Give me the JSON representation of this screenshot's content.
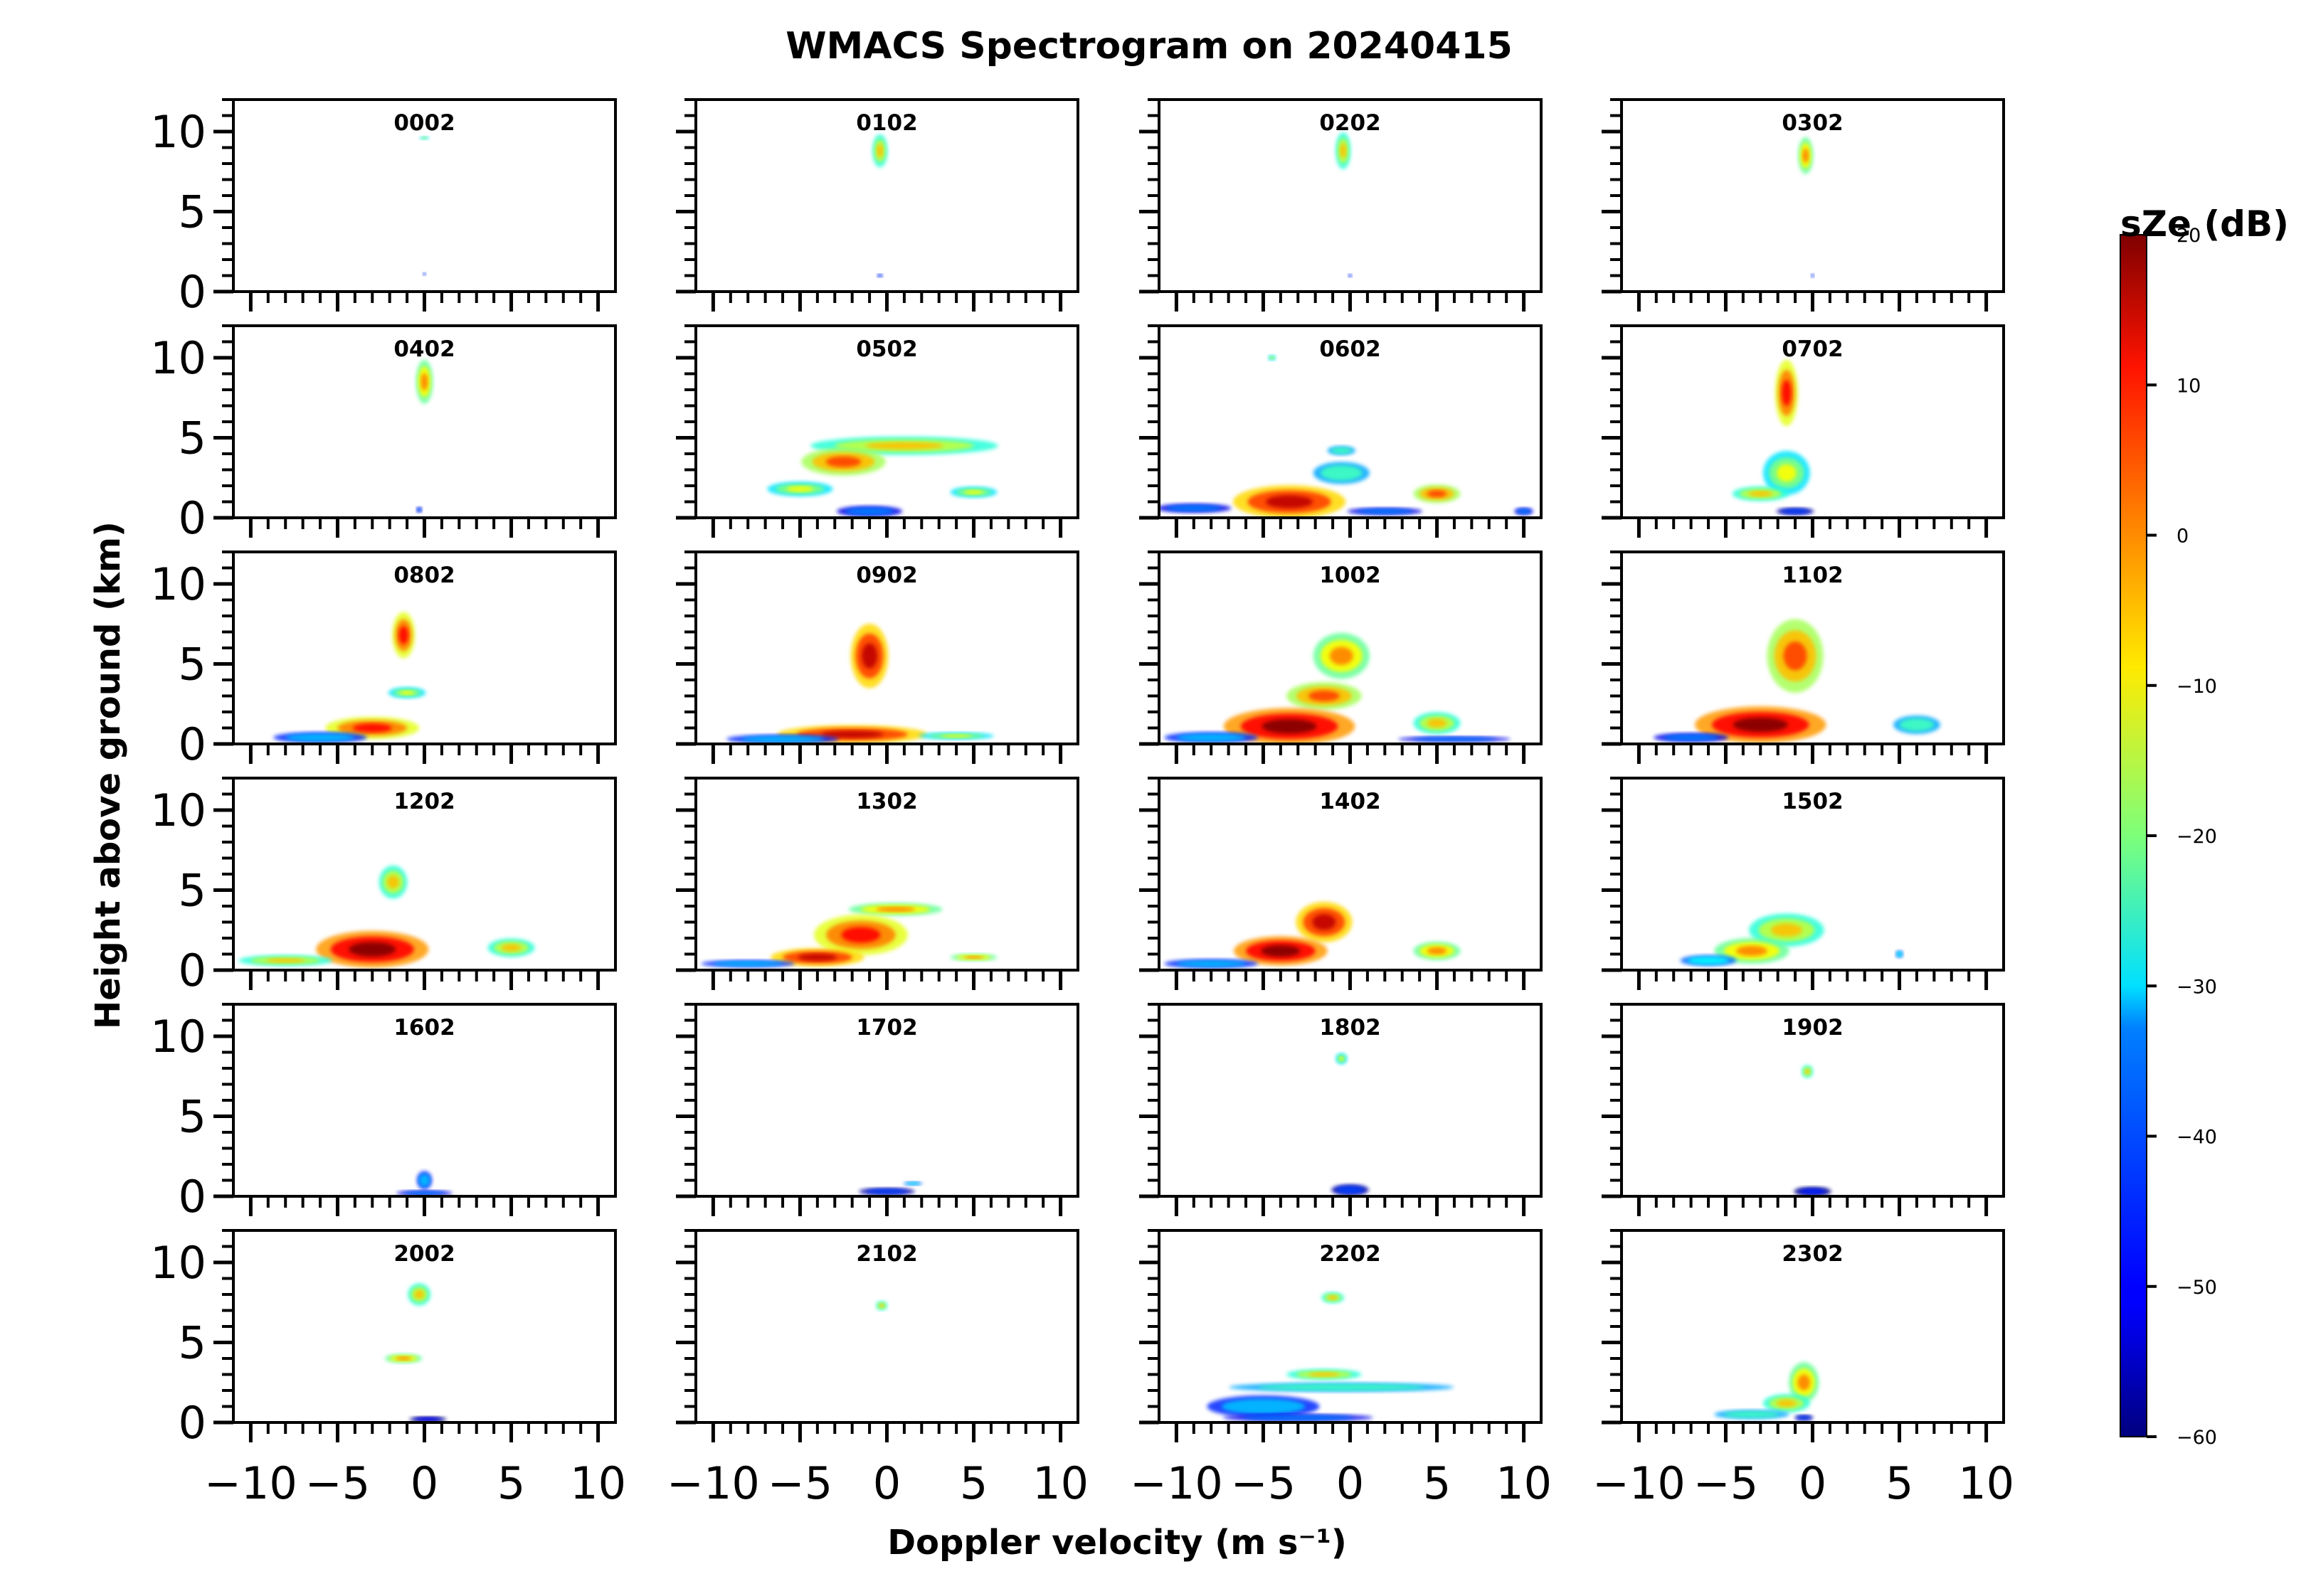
{
  "chart_data": {
    "type": "heatmap",
    "title": "WMACS Spectrogram on 20240415",
    "xlabel": "Doppler velocity (m s⁻¹)",
    "ylabel": "Height above ground (km)",
    "xlim": [
      -11,
      11
    ],
    "ylim": [
      0,
      12
    ],
    "x_ticks": [
      -10,
      -5,
      0,
      5,
      10
    ],
    "x_tick_labels": [
      "−10",
      "−5",
      "0",
      "5",
      "10"
    ],
    "y_ticks": [
      0,
      5,
      10
    ],
    "y_tick_labels": [
      "0",
      "5",
      "10"
    ],
    "grid": false,
    "layout": {
      "rows": 6,
      "cols": 4
    },
    "colorbar": {
      "label": "sZe (dB)",
      "range": [
        -60,
        20
      ],
      "ticks": [
        -60,
        -50,
        -40,
        -30,
        -20,
        -10,
        0,
        10,
        20
      ],
      "tick_labels": [
        "−60",
        "−50",
        "−40",
        "−30",
        "−20",
        "−10",
        "0",
        "10",
        "20"
      ],
      "colormap": "jet"
    },
    "panels": [
      {
        "label": "0002",
        "blobs": [
          {
            "x": 0,
            "y": 9.6,
            "w": 0.5,
            "h": 0.15,
            "v": -20
          },
          {
            "x": 0,
            "y": 1.1,
            "w": 0.15,
            "h": 0.1,
            "v": -40
          }
        ]
      },
      {
        "label": "0102",
        "blobs": [
          {
            "x": -0.4,
            "y": 8.8,
            "w": 0.8,
            "h": 1.8,
            "v": -15
          },
          {
            "x": -0.4,
            "y": 1.0,
            "w": 0.3,
            "h": 0.1,
            "v": -40
          }
        ]
      },
      {
        "label": "0202",
        "blobs": [
          {
            "x": -0.4,
            "y": 8.8,
            "w": 0.8,
            "h": 2.0,
            "v": -15
          },
          {
            "x": 0,
            "y": 1.0,
            "w": 0.2,
            "h": 0.1,
            "v": -40
          }
        ]
      },
      {
        "label": "0302",
        "blobs": [
          {
            "x": -0.4,
            "y": 8.5,
            "w": 0.8,
            "h": 2.0,
            "v": -10
          },
          {
            "x": 0,
            "y": 1.0,
            "w": 0.1,
            "h": 0.2,
            "v": -40
          }
        ]
      },
      {
        "label": "0402",
        "blobs": [
          {
            "x": 0,
            "y": 8.5,
            "w": 0.9,
            "h": 2.4,
            "v": -10
          },
          {
            "x": -0.3,
            "y": 0.5,
            "w": 0.3,
            "h": 0.3,
            "v": -40
          }
        ]
      },
      {
        "label": "0502",
        "blobs": [
          {
            "x": 1.0,
            "y": 4.5,
            "w": 10,
            "h": 1.0,
            "v": -15
          },
          {
            "x": -2.5,
            "y": 3.5,
            "w": 4.5,
            "h": 1.5,
            "v": -5
          },
          {
            "x": -5,
            "y": 1.8,
            "w": 3.5,
            "h": 0.8,
            "v": -20
          },
          {
            "x": 5,
            "y": 1.6,
            "w": 2.5,
            "h": 0.6,
            "v": -20
          },
          {
            "x": -1,
            "y": 0.4,
            "w": 3.5,
            "h": 0.6,
            "v": -40
          }
        ]
      },
      {
        "label": "0602",
        "blobs": [
          {
            "x": -9,
            "y": 0.6,
            "w": 4,
            "h": 0.5,
            "v": -40
          },
          {
            "x": -3.5,
            "y": 1.0,
            "w": 6,
            "h": 1.8,
            "v": 5
          },
          {
            "x": -0.5,
            "y": 2.8,
            "w": 3,
            "h": 1.2,
            "v": -25
          },
          {
            "x": -0.5,
            "y": 4.2,
            "w": 1.5,
            "h": 0.5,
            "v": -25
          },
          {
            "x": 5,
            "y": 1.5,
            "w": 2.5,
            "h": 1.0,
            "v": -5
          },
          {
            "x": 2,
            "y": 0.4,
            "w": 4,
            "h": 0.4,
            "v": -40
          },
          {
            "x": 10,
            "y": 0.4,
            "w": 1,
            "h": 0.4,
            "v": -40
          },
          {
            "x": -4.5,
            "y": 10.0,
            "w": 0.4,
            "h": 0.3,
            "v": -20
          }
        ]
      },
      {
        "label": "0702",
        "blobs": [
          {
            "x": -1.5,
            "y": 7.8,
            "w": 1.2,
            "h": 3.6,
            "v": 0
          },
          {
            "x": -1.5,
            "y": 2.8,
            "w": 2.5,
            "h": 2.4,
            "v": -20
          },
          {
            "x": -3,
            "y": 1.5,
            "w": 3,
            "h": 0.8,
            "v": -15
          },
          {
            "x": -1,
            "y": 0.4,
            "w": 2,
            "h": 0.4,
            "v": -45
          }
        ]
      },
      {
        "label": "0802",
        "blobs": [
          {
            "x": -1.2,
            "y": 6.8,
            "w": 1.2,
            "h": 2.5,
            "v": 0
          },
          {
            "x": -1,
            "y": 3.2,
            "w": 2,
            "h": 0.6,
            "v": -20
          },
          {
            "x": -3,
            "y": 1.0,
            "w": 5,
            "h": 1.2,
            "v": 0
          },
          {
            "x": -6,
            "y": 0.4,
            "w": 5,
            "h": 0.6,
            "v": -35
          }
        ]
      },
      {
        "label": "0902",
        "blobs": [
          {
            "x": -1.0,
            "y": 5.5,
            "w": 2.0,
            "h": 3.5,
            "v": 5
          },
          {
            "x": -2,
            "y": 0.6,
            "w": 8,
            "h": 1.0,
            "v": 5
          },
          {
            "x": -6,
            "y": 0.3,
            "w": 6,
            "h": 0.5,
            "v": -35
          },
          {
            "x": 4,
            "y": 0.5,
            "w": 4,
            "h": 0.4,
            "v": -20
          }
        ]
      },
      {
        "label": "1002",
        "blobs": [
          {
            "x": -0.5,
            "y": 5.5,
            "w": 3,
            "h": 2.5,
            "v": -10
          },
          {
            "x": -1.5,
            "y": 3.0,
            "w": 4,
            "h": 1.5,
            "v": -5
          },
          {
            "x": -3.5,
            "y": 1.1,
            "w": 7,
            "h": 2.0,
            "v": 10
          },
          {
            "x": 5,
            "y": 1.3,
            "w": 2.5,
            "h": 1.2,
            "v": -15
          },
          {
            "x": -8,
            "y": 0.4,
            "w": 5,
            "h": 0.6,
            "v": -35
          },
          {
            "x": 6,
            "y": 0.3,
            "w": 6,
            "h": 0.3,
            "v": -40
          }
        ]
      },
      {
        "label": "1102",
        "blobs": [
          {
            "x": -1.0,
            "y": 5.5,
            "w": 3,
            "h": 4.0,
            "v": -5
          },
          {
            "x": -3.0,
            "y": 1.2,
            "w": 7,
            "h": 2.0,
            "v": 10
          },
          {
            "x": -7,
            "y": 0.4,
            "w": 4,
            "h": 0.5,
            "v": -40
          },
          {
            "x": 6,
            "y": 1.2,
            "w": 2.5,
            "h": 1.0,
            "v": -25
          }
        ]
      },
      {
        "label": "1202",
        "blobs": [
          {
            "x": -1.8,
            "y": 5.5,
            "w": 1.5,
            "h": 1.8,
            "v": -15
          },
          {
            "x": -3.0,
            "y": 1.3,
            "w": 6,
            "h": 2.0,
            "v": 10
          },
          {
            "x": -8,
            "y": 0.6,
            "w": 5,
            "h": 0.6,
            "v": -15
          },
          {
            "x": 5,
            "y": 1.4,
            "w": 2.5,
            "h": 1.0,
            "v": -15
          }
        ]
      },
      {
        "label": "1302",
        "blobs": [
          {
            "x": 0.5,
            "y": 3.8,
            "w": 5,
            "h": 0.7,
            "v": -10
          },
          {
            "x": -1.5,
            "y": 2.2,
            "w": 5,
            "h": 2.2,
            "v": 0
          },
          {
            "x": -4,
            "y": 0.8,
            "w": 5,
            "h": 1.0,
            "v": 5
          },
          {
            "x": -8,
            "y": 0.4,
            "w": 5,
            "h": 0.4,
            "v": -35
          },
          {
            "x": 5,
            "y": 0.8,
            "w": 2.5,
            "h": 0.4,
            "v": -10
          }
        ]
      },
      {
        "label": "1402",
        "blobs": [
          {
            "x": -1.5,
            "y": 3.0,
            "w": 3,
            "h": 2.2,
            "v": 5
          },
          {
            "x": -4,
            "y": 1.2,
            "w": 5,
            "h": 1.6,
            "v": 10
          },
          {
            "x": -8,
            "y": 0.4,
            "w": 5,
            "h": 0.5,
            "v": -35
          },
          {
            "x": 5,
            "y": 1.2,
            "w": 2.5,
            "h": 1.0,
            "v": -10
          }
        ]
      },
      {
        "label": "1502",
        "blobs": [
          {
            "x": -1.5,
            "y": 2.5,
            "w": 4,
            "h": 1.8,
            "v": -15
          },
          {
            "x": -3.5,
            "y": 1.2,
            "w": 4,
            "h": 1.4,
            "v": -10
          },
          {
            "x": -6,
            "y": 0.6,
            "w": 3,
            "h": 0.6,
            "v": -30
          },
          {
            "x": 5,
            "y": 1.0,
            "w": 0.4,
            "h": 0.4,
            "v": -30
          }
        ]
      },
      {
        "label": "1602",
        "blobs": [
          {
            "x": 0,
            "y": 1.0,
            "w": 0.8,
            "h": 1.0,
            "v": -35
          },
          {
            "x": 0,
            "y": 0.2,
            "w": 3,
            "h": 0.3,
            "v": -40
          }
        ]
      },
      {
        "label": "1702",
        "blobs": [
          {
            "x": 0,
            "y": 0.3,
            "w": 3,
            "h": 0.4,
            "v": -45
          },
          {
            "x": 1.5,
            "y": 0.8,
            "w": 1,
            "h": 0.2,
            "v": -30
          }
        ]
      },
      {
        "label": "1802",
        "blobs": [
          {
            "x": -0.5,
            "y": 8.6,
            "w": 0.6,
            "h": 0.6,
            "v": -20
          },
          {
            "x": 0,
            "y": 0.4,
            "w": 2,
            "h": 0.6,
            "v": -45
          }
        ]
      },
      {
        "label": "1902",
        "blobs": [
          {
            "x": -0.3,
            "y": 7.8,
            "w": 0.6,
            "h": 0.7,
            "v": -15
          },
          {
            "x": 0,
            "y": 0.3,
            "w": 2,
            "h": 0.5,
            "v": -48
          }
        ]
      },
      {
        "label": "2002",
        "blobs": [
          {
            "x": -0.3,
            "y": 8.0,
            "w": 1.2,
            "h": 1.2,
            "v": -15
          },
          {
            "x": -1.2,
            "y": 4.0,
            "w": 2,
            "h": 0.5,
            "v": -10
          },
          {
            "x": 0.2,
            "y": 0.2,
            "w": 2,
            "h": 0.3,
            "v": -50
          }
        ]
      },
      {
        "label": "2102",
        "blobs": [
          {
            "x": -0.3,
            "y": 7.3,
            "w": 0.6,
            "h": 0.5,
            "v": -15
          }
        ]
      },
      {
        "label": "2202",
        "blobs": [
          {
            "x": -1.0,
            "y": 7.8,
            "w": 1.2,
            "h": 0.6,
            "v": -15
          },
          {
            "x": -0.5,
            "y": 2.2,
            "w": 12,
            "h": 0.5,
            "v": -25
          },
          {
            "x": -1.5,
            "y": 3.0,
            "w": 4,
            "h": 0.6,
            "v": -15
          },
          {
            "x": -5,
            "y": 1.0,
            "w": 6,
            "h": 1.2,
            "v": -35
          },
          {
            "x": -3,
            "y": 0.3,
            "w": 8,
            "h": 0.4,
            "v": -40
          }
        ]
      },
      {
        "label": "2302",
        "blobs": [
          {
            "x": -0.5,
            "y": 2.5,
            "w": 1.6,
            "h": 2.2,
            "v": -10
          },
          {
            "x": -1.5,
            "y": 1.2,
            "w": 2.5,
            "h": 1.0,
            "v": -15
          },
          {
            "x": -3.5,
            "y": 0.5,
            "w": 4,
            "h": 0.5,
            "v": -25
          },
          {
            "x": -0.5,
            "y": 0.3,
            "w": 1,
            "h": 0.3,
            "v": -45
          }
        ]
      }
    ]
  }
}
